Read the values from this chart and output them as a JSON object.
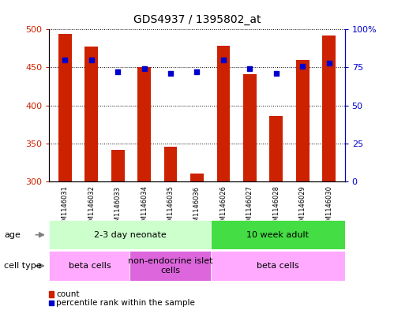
{
  "title": "GDS4937 / 1395802_at",
  "samples": [
    "GSM1146031",
    "GSM1146032",
    "GSM1146033",
    "GSM1146034",
    "GSM1146035",
    "GSM1146036",
    "GSM1146026",
    "GSM1146027",
    "GSM1146028",
    "GSM1146029",
    "GSM1146030"
  ],
  "counts": [
    494,
    478,
    341,
    451,
    346,
    310,
    479,
    441,
    386,
    460,
    492
  ],
  "percentiles": [
    80,
    80,
    72,
    74,
    71,
    72,
    80,
    74,
    71,
    76,
    78
  ],
  "ylim_left": [
    300,
    500
  ],
  "ylim_right": [
    0,
    100
  ],
  "yticks_left": [
    300,
    350,
    400,
    450,
    500
  ],
  "yticks_right": [
    0,
    25,
    50,
    75,
    100
  ],
  "ytick_labels_right": [
    "0",
    "25",
    "50",
    "75",
    "100%"
  ],
  "bar_color": "#cc2200",
  "dot_color": "#0000cc",
  "bar_width": 0.5,
  "bg_label": "#cccccc",
  "age_groups": [
    {
      "label": "2-3 day neonate",
      "start": 0,
      "end": 6,
      "color": "#ccffcc"
    },
    {
      "label": "10 week adult",
      "start": 6,
      "end": 11,
      "color": "#44dd44"
    }
  ],
  "cell_type_groups": [
    {
      "label": "beta cells",
      "start": 0,
      "end": 3,
      "color": "#ffaaff"
    },
    {
      "label": "non-endocrine islet\ncells",
      "start": 3,
      "end": 6,
      "color": "#dd66dd"
    },
    {
      "label": "beta cells",
      "start": 6,
      "end": 11,
      "color": "#ffaaff"
    }
  ],
  "legend_count_label": "count",
  "legend_percentile_label": "percentile rank within the sample",
  "age_row_label": "age",
  "cell_type_row_label": "cell type",
  "title_fontsize": 10,
  "tick_fontsize": 8,
  "label_fontsize": 8,
  "sample_fontsize": 6
}
